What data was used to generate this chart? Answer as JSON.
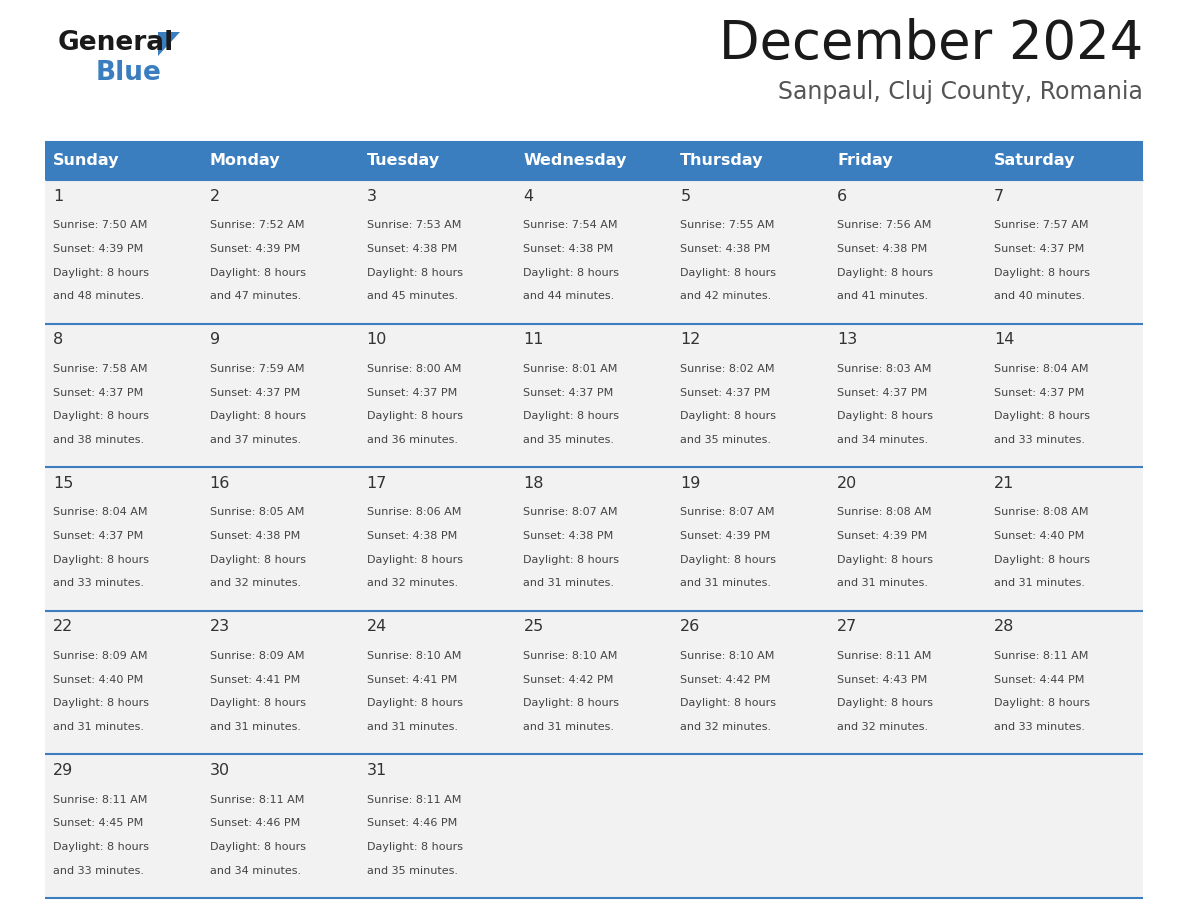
{
  "title": "December 2024",
  "subtitle": "Sanpaul, Cluj County, Romania",
  "header_color": "#3a7ebf",
  "header_text_color": "#ffffff",
  "cell_bg_color": "#f2f2f2",
  "day_headers": [
    "Sunday",
    "Monday",
    "Tuesday",
    "Wednesday",
    "Thursday",
    "Friday",
    "Saturday"
  ],
  "days": [
    {
      "day": 1,
      "col": 0,
      "row": 0,
      "sunrise": "7:50 AM",
      "sunset": "4:39 PM",
      "daylight": "8 hours\nand 48 minutes."
    },
    {
      "day": 2,
      "col": 1,
      "row": 0,
      "sunrise": "7:52 AM",
      "sunset": "4:39 PM",
      "daylight": "8 hours\nand 47 minutes."
    },
    {
      "day": 3,
      "col": 2,
      "row": 0,
      "sunrise": "7:53 AM",
      "sunset": "4:38 PM",
      "daylight": "8 hours\nand 45 minutes."
    },
    {
      "day": 4,
      "col": 3,
      "row": 0,
      "sunrise": "7:54 AM",
      "sunset": "4:38 PM",
      "daylight": "8 hours\nand 44 minutes."
    },
    {
      "day": 5,
      "col": 4,
      "row": 0,
      "sunrise": "7:55 AM",
      "sunset": "4:38 PM",
      "daylight": "8 hours\nand 42 minutes."
    },
    {
      "day": 6,
      "col": 5,
      "row": 0,
      "sunrise": "7:56 AM",
      "sunset": "4:38 PM",
      "daylight": "8 hours\nand 41 minutes."
    },
    {
      "day": 7,
      "col": 6,
      "row": 0,
      "sunrise": "7:57 AM",
      "sunset": "4:37 PM",
      "daylight": "8 hours\nand 40 minutes."
    },
    {
      "day": 8,
      "col": 0,
      "row": 1,
      "sunrise": "7:58 AM",
      "sunset": "4:37 PM",
      "daylight": "8 hours\nand 38 minutes."
    },
    {
      "day": 9,
      "col": 1,
      "row": 1,
      "sunrise": "7:59 AM",
      "sunset": "4:37 PM",
      "daylight": "8 hours\nand 37 minutes."
    },
    {
      "day": 10,
      "col": 2,
      "row": 1,
      "sunrise": "8:00 AM",
      "sunset": "4:37 PM",
      "daylight": "8 hours\nand 36 minutes."
    },
    {
      "day": 11,
      "col": 3,
      "row": 1,
      "sunrise": "8:01 AM",
      "sunset": "4:37 PM",
      "daylight": "8 hours\nand 35 minutes."
    },
    {
      "day": 12,
      "col": 4,
      "row": 1,
      "sunrise": "8:02 AM",
      "sunset": "4:37 PM",
      "daylight": "8 hours\nand 35 minutes."
    },
    {
      "day": 13,
      "col": 5,
      "row": 1,
      "sunrise": "8:03 AM",
      "sunset": "4:37 PM",
      "daylight": "8 hours\nand 34 minutes."
    },
    {
      "day": 14,
      "col": 6,
      "row": 1,
      "sunrise": "8:04 AM",
      "sunset": "4:37 PM",
      "daylight": "8 hours\nand 33 minutes."
    },
    {
      "day": 15,
      "col": 0,
      "row": 2,
      "sunrise": "8:04 AM",
      "sunset": "4:37 PM",
      "daylight": "8 hours\nand 33 minutes."
    },
    {
      "day": 16,
      "col": 1,
      "row": 2,
      "sunrise": "8:05 AM",
      "sunset": "4:38 PM",
      "daylight": "8 hours\nand 32 minutes."
    },
    {
      "day": 17,
      "col": 2,
      "row": 2,
      "sunrise": "8:06 AM",
      "sunset": "4:38 PM",
      "daylight": "8 hours\nand 32 minutes."
    },
    {
      "day": 18,
      "col": 3,
      "row": 2,
      "sunrise": "8:07 AM",
      "sunset": "4:38 PM",
      "daylight": "8 hours\nand 31 minutes."
    },
    {
      "day": 19,
      "col": 4,
      "row": 2,
      "sunrise": "8:07 AM",
      "sunset": "4:39 PM",
      "daylight": "8 hours\nand 31 minutes."
    },
    {
      "day": 20,
      "col": 5,
      "row": 2,
      "sunrise": "8:08 AM",
      "sunset": "4:39 PM",
      "daylight": "8 hours\nand 31 minutes."
    },
    {
      "day": 21,
      "col": 6,
      "row": 2,
      "sunrise": "8:08 AM",
      "sunset": "4:40 PM",
      "daylight": "8 hours\nand 31 minutes."
    },
    {
      "day": 22,
      "col": 0,
      "row": 3,
      "sunrise": "8:09 AM",
      "sunset": "4:40 PM",
      "daylight": "8 hours\nand 31 minutes."
    },
    {
      "day": 23,
      "col": 1,
      "row": 3,
      "sunrise": "8:09 AM",
      "sunset": "4:41 PM",
      "daylight": "8 hours\nand 31 minutes."
    },
    {
      "day": 24,
      "col": 2,
      "row": 3,
      "sunrise": "8:10 AM",
      "sunset": "4:41 PM",
      "daylight": "8 hours\nand 31 minutes."
    },
    {
      "day": 25,
      "col": 3,
      "row": 3,
      "sunrise": "8:10 AM",
      "sunset": "4:42 PM",
      "daylight": "8 hours\nand 31 minutes."
    },
    {
      "day": 26,
      "col": 4,
      "row": 3,
      "sunrise": "8:10 AM",
      "sunset": "4:42 PM",
      "daylight": "8 hours\nand 32 minutes."
    },
    {
      "day": 27,
      "col": 5,
      "row": 3,
      "sunrise": "8:11 AM",
      "sunset": "4:43 PM",
      "daylight": "8 hours\nand 32 minutes."
    },
    {
      "day": 28,
      "col": 6,
      "row": 3,
      "sunrise": "8:11 AM",
      "sunset": "4:44 PM",
      "daylight": "8 hours\nand 33 minutes."
    },
    {
      "day": 29,
      "col": 0,
      "row": 4,
      "sunrise": "8:11 AM",
      "sunset": "4:45 PM",
      "daylight": "8 hours\nand 33 minutes."
    },
    {
      "day": 30,
      "col": 1,
      "row": 4,
      "sunrise": "8:11 AM",
      "sunset": "4:46 PM",
      "daylight": "8 hours\nand 34 minutes."
    },
    {
      "day": 31,
      "col": 2,
      "row": 4,
      "sunrise": "8:11 AM",
      "sunset": "4:46 PM",
      "daylight": "8 hours\nand 35 minutes."
    }
  ],
  "n_rows": 5,
  "n_cols": 7,
  "logo_color_general": "#1a1a1a",
  "logo_color_blue": "#3a7ebf",
  "logo_triangle_color": "#3a7ebf",
  "title_color": "#1a1a1a",
  "subtitle_color": "#555555",
  "border_color": "#3a7ebf",
  "text_color": "#444444",
  "day_num_color": "#333333"
}
